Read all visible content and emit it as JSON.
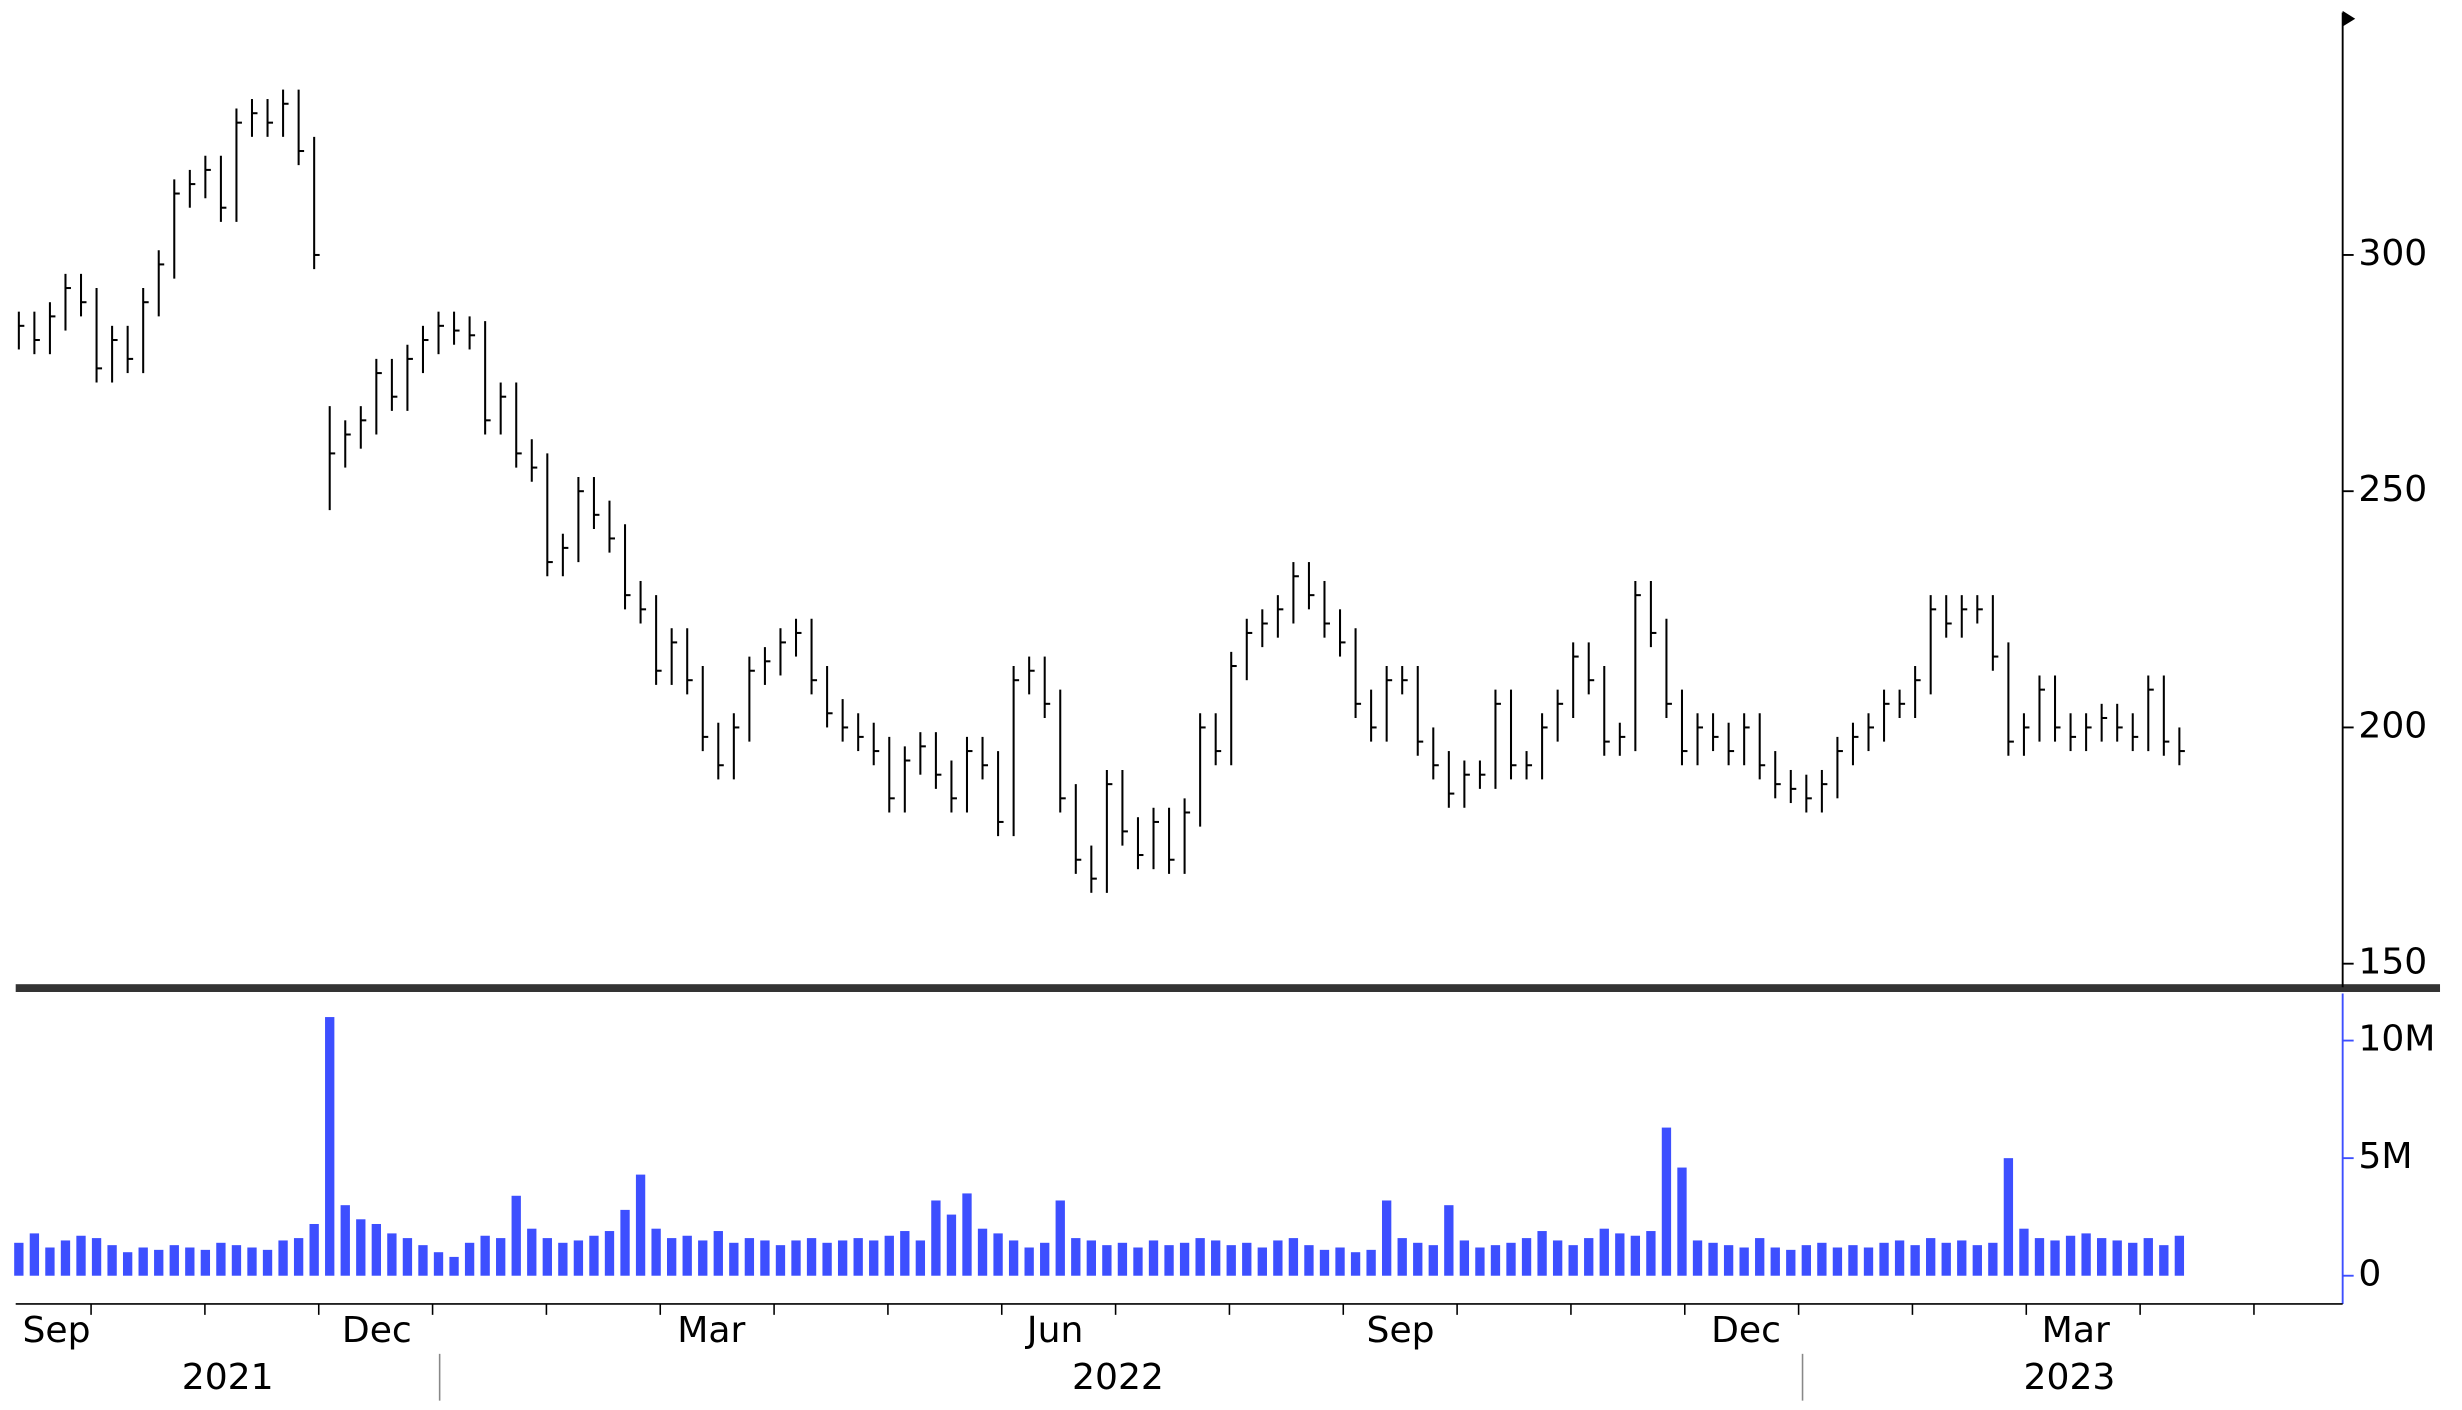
{
  "chart_data": [
    {
      "type": "ohlc",
      "color": "#000000",
      "ylim": [
        145,
        350
      ],
      "yticks": [
        150,
        200,
        250,
        300
      ],
      "high": [
        288,
        288,
        290,
        296,
        296,
        293,
        285,
        285,
        293,
        301,
        316,
        318,
        321,
        321,
        331,
        333,
        333,
        335,
        335,
        325,
        268,
        265,
        268,
        278,
        278,
        281,
        285,
        288,
        288,
        287,
        286,
        273,
        273,
        261,
        258,
        241,
        253,
        253,
        248,
        243,
        231,
        228,
        221,
        221,
        213,
        201,
        203,
        215,
        217,
        221,
        223,
        223,
        213,
        206,
        203,
        201,
        198,
        196,
        199,
        199,
        193,
        198,
        198,
        195,
        213,
        215,
        215,
        208,
        188,
        175,
        191,
        191,
        181,
        183,
        183,
        185,
        203,
        203,
        216,
        223,
        225,
        228,
        235,
        235,
        231,
        225,
        221,
        208,
        213,
        213,
        213,
        200,
        195,
        193,
        193,
        208,
        208,
        195,
        203,
        208,
        218,
        218,
        213,
        201,
        231,
        231,
        223,
        208,
        203,
        203,
        201,
        203,
        203,
        195,
        191,
        190,
        191,
        198,
        201,
        203,
        208,
        208,
        213,
        228,
        228,
        228,
        228,
        228,
        218,
        203,
        211,
        211,
        203,
        203,
        205,
        205,
        203,
        211,
        211,
        200
      ],
      "low": [
        280,
        279,
        279,
        284,
        287,
        273,
        273,
        275,
        275,
        287,
        295,
        310,
        312,
        307,
        307,
        325,
        325,
        325,
        319,
        297,
        246,
        255,
        259,
        262,
        267,
        267,
        275,
        279,
        281,
        280,
        262,
        262,
        255,
        252,
        232,
        232,
        235,
        242,
        237,
        225,
        222,
        209,
        209,
        207,
        195,
        189,
        189,
        197,
        209,
        211,
        215,
        207,
        200,
        197,
        195,
        192,
        182,
        182,
        190,
        187,
        182,
        182,
        189,
        177,
        177,
        207,
        202,
        182,
        169,
        165,
        165,
        175,
        170,
        170,
        169,
        169,
        179,
        192,
        192,
        210,
        217,
        219,
        222,
        225,
        219,
        215,
        202,
        197,
        197,
        207,
        194,
        189,
        183,
        183,
        187,
        187,
        189,
        189,
        189,
        197,
        202,
        207,
        194,
        194,
        195,
        217,
        202,
        192,
        192,
        195,
        192,
        192,
        189,
        185,
        184,
        182,
        182,
        185,
        192,
        195,
        197,
        202,
        202,
        207,
        219,
        219,
        222,
        212,
        194,
        194,
        197,
        197,
        195,
        195,
        197,
        197,
        195,
        195,
        194,
        192
      ],
      "close": [
        285,
        282,
        287,
        293,
        290,
        276,
        282,
        278,
        290,
        298,
        313,
        315,
        318,
        310,
        328,
        330,
        328,
        332,
        322,
        300,
        258,
        262,
        265,
        275,
        270,
        278,
        282,
        285,
        284,
        283,
        265,
        270,
        258,
        255,
        235,
        238,
        250,
        245,
        240,
        228,
        225,
        212,
        218,
        210,
        198,
        192,
        200,
        212,
        214,
        218,
        220,
        210,
        203,
        200,
        198,
        195,
        185,
        193,
        196,
        190,
        185,
        195,
        192,
        180,
        210,
        212,
        205,
        185,
        172,
        168,
        188,
        178,
        173,
        180,
        172,
        182,
        200,
        195,
        213,
        220,
        222,
        225,
        232,
        228,
        222,
        218,
        205,
        200,
        210,
        210,
        197,
        192,
        186,
        190,
        190,
        205,
        192,
        192,
        200,
        205,
        215,
        210,
        197,
        198,
        228,
        220,
        205,
        195,
        200,
        198,
        195,
        200,
        192,
        188,
        187,
        185,
        188,
        195,
        198,
        200,
        205,
        205,
        210,
        225,
        222,
        225,
        225,
        215,
        197,
        200,
        208,
        200,
        198,
        200,
        202,
        200,
        198,
        208,
        197,
        195
      ]
    },
    {
      "type": "bar",
      "color": "#3d4fff",
      "ylim": [
        -1.2,
        12
      ],
      "yticks": [
        0,
        {
          "value": 5,
          "label": "5M"
        },
        {
          "value": 10,
          "label": "10M"
        }
      ],
      "values": [
        1.4,
        1.8,
        1.2,
        1.5,
        1.7,
        1.6,
        1.3,
        1.0,
        1.2,
        1.1,
        1.3,
        1.2,
        1.1,
        1.4,
        1.3,
        1.2,
        1.1,
        1.5,
        1.6,
        2.2,
        11.0,
        3.0,
        2.4,
        2.2,
        1.8,
        1.6,
        1.3,
        1.0,
        0.8,
        1.4,
        1.7,
        1.6,
        3.4,
        2.0,
        1.6,
        1.4,
        1.5,
        1.7,
        1.9,
        2.8,
        4.3,
        2.0,
        1.6,
        1.7,
        1.5,
        1.9,
        1.4,
        1.6,
        1.5,
        1.3,
        1.5,
        1.6,
        1.4,
        1.5,
        1.6,
        1.5,
        1.7,
        1.9,
        1.5,
        3.2,
        2.6,
        3.5,
        2.0,
        1.8,
        1.5,
        1.2,
        1.4,
        3.2,
        1.6,
        1.5,
        1.3,
        1.4,
        1.2,
        1.5,
        1.3,
        1.4,
        1.6,
        1.5,
        1.3,
        1.4,
        1.2,
        1.5,
        1.6,
        1.3,
        1.1,
        1.2,
        1.0,
        1.1,
        3.2,
        1.6,
        1.4,
        1.3,
        3.0,
        1.5,
        1.2,
        1.3,
        1.4,
        1.6,
        1.9,
        1.5,
        1.3,
        1.6,
        2.0,
        1.8,
        1.7,
        1.9,
        6.3,
        4.6,
        1.5,
        1.4,
        1.3,
        1.2,
        1.6,
        1.2,
        1.1,
        1.3,
        1.4,
        1.2,
        1.3,
        1.2,
        1.4,
        1.5,
        1.3,
        1.6,
        1.4,
        1.5,
        1.3,
        1.4,
        5.0,
        2.0,
        1.6,
        1.5,
        1.7,
        1.8,
        1.6,
        1.5,
        1.4,
        1.6,
        1.3,
        1.7
      ]
    }
  ],
  "x_axis": {
    "months": [
      "Sep",
      "Dec",
      "Mar",
      "Jun",
      "Sep",
      "Dec",
      "Mar"
    ],
    "years": [
      "2021",
      "2022",
      "2023"
    ]
  }
}
